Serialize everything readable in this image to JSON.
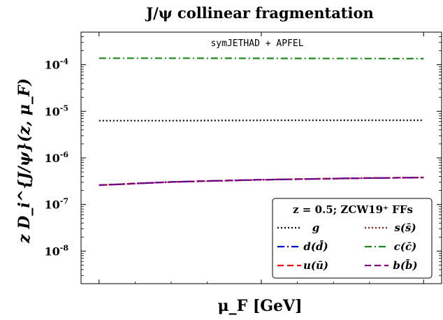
{
  "chart_data": {
    "type": "line",
    "title": "J/ψ collinear fragmentation",
    "annotation": "symJETHAD + APFEL",
    "xlabel": "μ_F [GeV]",
    "ylabel": "z D_i^{J/ψ}(z, μ_F)",
    "yscale": "log",
    "ylim": [
      2e-09,
      0.0005
    ],
    "xlim": [
      0,
      1
    ],
    "x": [
      0.05,
      0.25,
      0.5,
      0.75,
      0.95
    ],
    "y_tick_labels": [
      "10^{-4}",
      "10^{-5}",
      "10^{-6}",
      "10^{-7}",
      "10^{-8}"
    ],
    "y_tick_values": [
      0.0001,
      1e-05,
      1e-06,
      1e-07,
      1e-08
    ],
    "legend_title": "z = 0.5;  ZCW19⁺ FFs",
    "legend_position": "bottom-right",
    "series": [
      {
        "name": "g",
        "color": "#000000",
        "style": "dotted",
        "values": [
          6.3e-06,
          6.3e-06,
          6.4e-06,
          6.4e-06,
          6.4e-06
        ]
      },
      {
        "name": "d(d̄)",
        "color": "#0000dd",
        "style": "dashdot",
        "values": [
          2.6e-07,
          3.05e-07,
          3.4e-07,
          3.65e-07,
          3.8e-07
        ]
      },
      {
        "name": "u(ū)",
        "color": "#ff0000",
        "style": "dashed",
        "values": [
          2.6e-07,
          3.05e-07,
          3.4e-07,
          3.65e-07,
          3.8e-07
        ]
      },
      {
        "name": "s(s̄)",
        "color": "#8b1a1a",
        "style": "dotted",
        "values": [
          2.6e-07,
          3.05e-07,
          3.4e-07,
          3.65e-07,
          3.8e-07
        ]
      },
      {
        "name": "c(c̄)",
        "color": "#1a8a1a",
        "style": "dashdot",
        "values": [
          0.000138,
          0.000138,
          0.000137,
          0.000136,
          0.000135
        ]
      },
      {
        "name": "b(b̄)",
        "color": "#800080",
        "style": "dashed",
        "values": [
          2.6e-07,
          3.05e-07,
          3.4e-07,
          3.65e-07,
          3.8e-07
        ]
      }
    ]
  }
}
